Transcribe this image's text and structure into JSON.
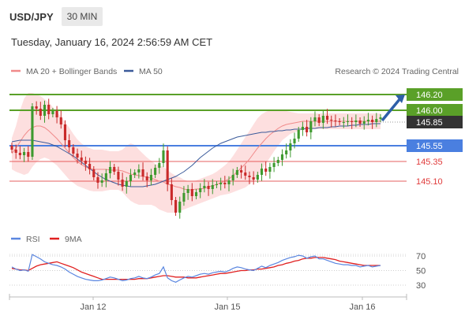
{
  "header": {
    "symbol": "USD/JPY",
    "timeframe": "30 MIN",
    "datetime": "Tuesday, January 16, 2024 2:56:59 AM CET"
  },
  "chart_data": [
    {
      "type": "candlestick",
      "title": "USD/JPY",
      "watermark": "Research © 2024 Trading Central",
      "legend": [
        {
          "label": "MA 20 + Bollinger Bands",
          "color": "#f08a8a"
        },
        {
          "label": "MA 50",
          "color": "#3a5a9a"
        }
      ],
      "xlabels": [
        "Jan 12",
        "Jan 15",
        "Jan 16"
      ],
      "ylim": [
        144.3,
        146.4
      ],
      "levels": [
        {
          "value": 146.2,
          "label": "146.20",
          "style": "resistance",
          "color": "#5aa028"
        },
        {
          "value": 146.0,
          "label": "146.00",
          "style": "resistance",
          "color": "#5aa028"
        },
        {
          "value": 145.85,
          "label": "145.85",
          "style": "last-price",
          "color": "#333333"
        },
        {
          "value": 145.55,
          "label": "145.55",
          "style": "pivot",
          "color": "#4a7fe0"
        },
        {
          "value": 145.35,
          "label": "145.35",
          "style": "support",
          "color": "#e03a3a"
        },
        {
          "value": 145.1,
          "label": "145.10",
          "style": "support",
          "color": "#e03a3a"
        }
      ],
      "close": [
        145.5,
        145.46,
        145.43,
        145.47,
        145.41,
        146.05,
        146.02,
        145.93,
        146.07,
        145.95,
        145.99,
        145.91,
        145.82,
        145.62,
        145.53,
        145.45,
        145.4,
        145.36,
        145.32,
        145.25,
        145.15,
        145.08,
        145.11,
        145.2,
        145.28,
        145.22,
        145.12,
        145.03,
        145.1,
        145.18,
        145.21,
        145.25,
        145.16,
        145.11,
        145.18,
        145.27,
        145.33,
        145.49,
        145.06,
        144.86,
        144.7,
        144.84,
        144.95,
        145.0,
        144.91,
        144.96,
        145.01,
        145.04,
        145.0,
        145.05,
        145.06,
        145.08,
        145.06,
        145.11,
        145.18,
        145.24,
        145.21,
        145.17,
        145.15,
        145.12,
        145.18,
        145.26,
        145.22,
        145.28,
        145.33,
        145.37,
        145.44,
        145.49,
        145.58,
        145.64,
        145.75,
        145.79,
        145.72,
        145.86,
        145.91,
        145.84,
        145.93,
        145.88,
        145.87,
        145.86,
        145.85,
        145.85,
        145.86,
        145.85,
        145.87,
        145.83,
        145.86,
        145.88,
        145.85,
        145.89,
        145.91
      ],
      "ma20": [
        145.45,
        145.52,
        145.6,
        145.68,
        145.74,
        145.78,
        145.8,
        145.8,
        145.78,
        145.74,
        145.69,
        145.64,
        145.58,
        145.52,
        145.46,
        145.4,
        145.35,
        145.31,
        145.28,
        145.26,
        145.25,
        145.25,
        145.25,
        145.25,
        145.24,
        145.24,
        145.24,
        145.23,
        145.21,
        145.19,
        145.18,
        145.17,
        145.16,
        145.15,
        145.14,
        145.12,
        145.1,
        145.09,
        145.06,
        145.05,
        145.03,
        145.02,
        145.0,
        144.99,
        144.99,
        145.0,
        145.0,
        145.01,
        145.03,
        145.04,
        145.06,
        145.08,
        145.1,
        145.13,
        145.17,
        145.22,
        145.27,
        145.32,
        145.38,
        145.45,
        145.52,
        145.58,
        145.64,
        145.69,
        145.73,
        145.77,
        145.8,
        145.82,
        145.83,
        145.84,
        145.85,
        145.86,
        145.86,
        145.86,
        145.86,
        145.86,
        145.86,
        145.86,
        145.86,
        145.86,
        145.86,
        145.86,
        145.86,
        145.86,
        145.86,
        145.86,
        145.86,
        145.86,
        145.86,
        145.86,
        145.86
      ],
      "bb_upper": [
        145.65,
        145.8,
        146.0,
        146.15,
        146.22,
        146.22,
        146.2,
        146.18,
        146.14,
        146.1,
        146.04,
        145.98,
        145.92,
        145.85,
        145.78,
        145.7,
        145.63,
        145.58,
        145.54,
        145.52,
        145.5,
        145.5,
        145.5,
        145.49,
        145.48,
        145.48,
        145.48,
        145.5,
        145.55,
        145.58,
        145.56,
        145.5,
        145.45,
        145.4,
        145.36,
        145.32,
        145.3,
        145.28,
        145.24,
        145.2,
        145.17,
        145.15,
        145.12,
        145.1,
        145.1,
        145.11,
        145.13,
        145.15,
        145.17,
        145.19,
        145.22,
        145.26,
        145.3,
        145.35,
        145.42,
        145.5,
        145.58,
        145.66,
        145.74,
        145.82,
        145.9,
        145.95,
        145.98,
        146.0,
        146.01,
        146.01,
        146.0,
        145.99,
        145.98,
        145.97,
        145.96,
        145.96,
        145.96,
        145.96,
        145.96,
        145.96,
        145.96,
        145.96,
        145.96,
        145.96,
        145.96,
        145.96,
        145.96,
        145.96,
        145.96,
        145.96,
        145.96,
        145.96,
        145.96,
        145.96,
        145.96
      ],
      "bb_lower": [
        145.25,
        145.22,
        145.2,
        145.18,
        145.2,
        145.28,
        145.34,
        145.38,
        145.4,
        145.38,
        145.34,
        145.3,
        145.24,
        145.18,
        145.12,
        145.08,
        145.04,
        145.02,
        145.0,
        144.98,
        144.97,
        144.97,
        144.97,
        144.98,
        144.99,
        144.99,
        144.99,
        144.96,
        144.9,
        144.85,
        144.82,
        144.8,
        144.8,
        144.8,
        144.8,
        144.78,
        144.74,
        144.72,
        144.7,
        144.7,
        144.7,
        144.72,
        144.74,
        144.76,
        144.78,
        144.8,
        144.82,
        144.84,
        144.86,
        144.88,
        144.9,
        144.92,
        144.93,
        144.94,
        144.96,
        144.98,
        145.0,
        145.02,
        145.06,
        145.1,
        145.16,
        145.24,
        145.32,
        145.4,
        145.48,
        145.55,
        145.62,
        145.66,
        145.7,
        145.72,
        145.74,
        145.75,
        145.76,
        145.76,
        145.76,
        145.76,
        145.76,
        145.76,
        145.76,
        145.76,
        145.76,
        145.76,
        145.76,
        145.76,
        145.76,
        145.76,
        145.76,
        145.76,
        145.76,
        145.76,
        145.76
      ],
      "ma50": [
        145.6,
        145.61,
        145.62,
        145.62,
        145.62,
        145.62,
        145.61,
        145.6,
        145.59,
        145.58,
        145.56,
        145.54,
        145.51,
        145.48,
        145.45,
        145.42,
        145.38,
        145.34,
        145.3,
        145.26,
        145.22,
        145.18,
        145.15,
        145.12,
        145.1,
        145.08,
        145.06,
        145.05,
        145.04,
        145.03,
        145.03,
        145.03,
        145.03,
        145.04,
        145.05,
        145.06,
        145.08,
        145.1,
        145.12,
        145.14,
        145.16,
        145.19,
        145.22,
        145.26,
        145.3,
        145.35,
        145.4,
        145.44,
        145.48,
        145.52,
        145.55,
        145.58,
        145.6,
        145.62,
        145.64,
        145.66,
        145.67,
        145.68,
        145.69,
        145.7,
        145.71,
        145.72,
        145.72,
        145.73,
        145.73,
        145.74,
        145.74,
        145.75,
        145.75,
        145.76,
        145.76,
        145.76,
        145.77,
        145.77,
        145.77,
        145.78,
        145.78,
        145.78,
        145.79,
        145.79,
        145.8,
        145.8,
        145.8,
        145.81,
        145.81,
        145.82,
        145.82,
        145.82,
        145.83,
        145.83,
        145.83
      ],
      "forecast": {
        "from": 145.87,
        "to": 146.2,
        "direction": "up"
      }
    },
    {
      "type": "line",
      "title": "RSI",
      "legend": [
        {
          "label": "RSI",
          "color": "#5a86e0"
        },
        {
          "label": "9MA",
          "color": "#e02020"
        }
      ],
      "yticks": [
        70,
        50,
        30
      ],
      "ylim": [
        20,
        80
      ],
      "series": [
        {
          "name": "RSI",
          "values": [
            55,
            52,
            50,
            51,
            49,
            72,
            69,
            66,
            62,
            60,
            58,
            57,
            55,
            52,
            48,
            45,
            42,
            40,
            38,
            37,
            36,
            36,
            37,
            39,
            41,
            40,
            38,
            36,
            37,
            39,
            40,
            42,
            40,
            39,
            41,
            44,
            46,
            55,
            40,
            36,
            34,
            37,
            40,
            42,
            41,
            43,
            45,
            46,
            45,
            47,
            48,
            49,
            48,
            50,
            53,
            55,
            54,
            52,
            51,
            50,
            53,
            56,
            54,
            57,
            59,
            61,
            64,
            66,
            68,
            69,
            71,
            70,
            67,
            69,
            70,
            66,
            66,
            64,
            62,
            60,
            59,
            58,
            58,
            57,
            57,
            55,
            56,
            57,
            55,
            56,
            57
          ]
        },
        {
          "name": "9MA",
          "values": [
            53,
            52,
            51,
            51,
            50,
            53,
            56,
            58,
            59,
            60,
            61,
            62,
            60,
            58,
            56,
            54,
            51,
            48,
            46,
            44,
            42,
            40,
            38,
            38,
            38,
            38,
            38,
            38,
            38,
            38,
            38,
            39,
            39,
            39,
            40,
            41,
            42,
            43,
            43,
            42,
            41,
            41,
            41,
            40,
            40,
            40,
            41,
            42,
            43,
            44,
            45,
            46,
            46,
            47,
            48,
            49,
            50,
            50,
            51,
            51,
            52,
            52,
            53,
            54,
            55,
            57,
            58,
            60,
            61,
            63,
            64,
            66,
            67,
            67,
            68,
            68,
            68,
            67,
            66,
            65,
            63,
            62,
            61,
            60,
            59,
            58,
            57,
            57,
            57,
            57,
            57
          ]
        }
      ]
    }
  ]
}
